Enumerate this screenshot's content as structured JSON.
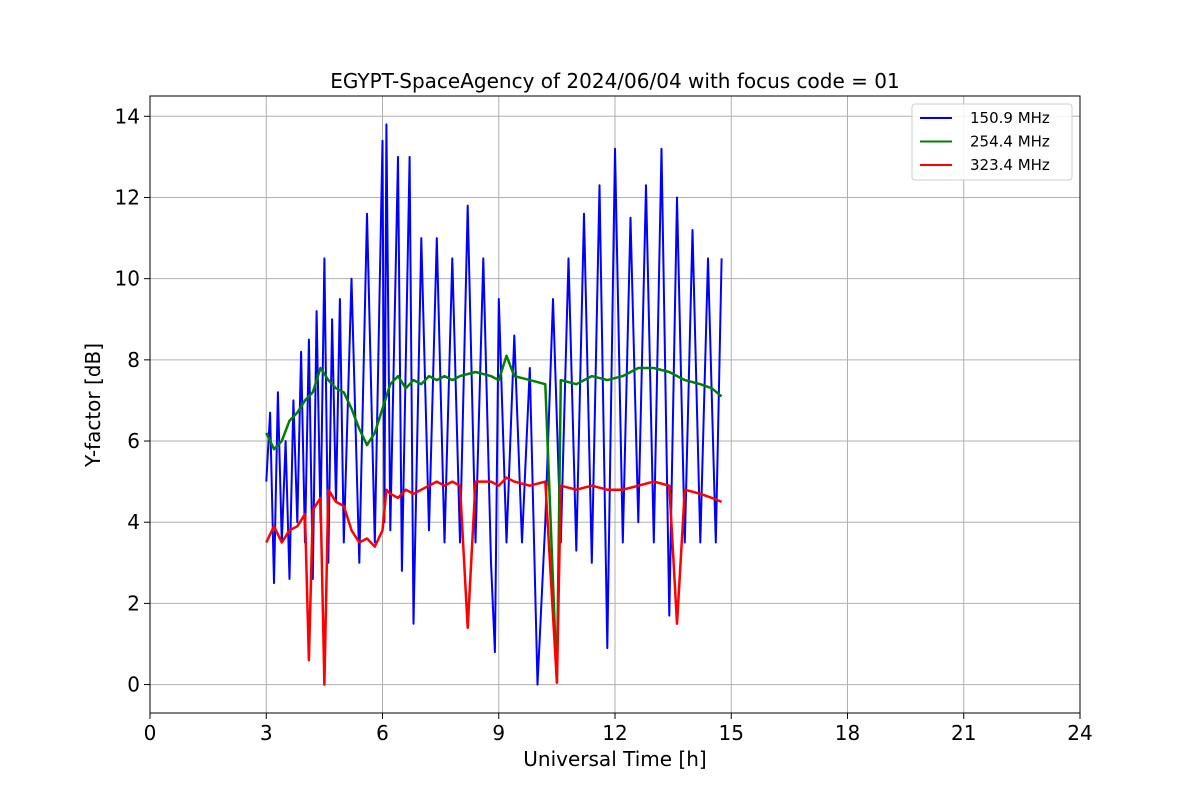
{
  "chart_data": {
    "type": "line",
    "title": "EGYPT-SpaceAgency of 2024/06/04 with focus code = 01",
    "xlabel": "Universal Time [h]",
    "ylabel": "Y-factor [dB]",
    "xlim": [
      0,
      24
    ],
    "ylim": [
      -0.7,
      14.5
    ],
    "x_ticks": [
      "0",
      "3",
      "6",
      "9",
      "12",
      "15",
      "18",
      "21",
      "24"
    ],
    "y_ticks": [
      "0",
      "2",
      "4",
      "6",
      "8",
      "10",
      "12",
      "14"
    ],
    "grid": true,
    "legend_position": "top-right",
    "series": [
      {
        "name": "150.9 MHz",
        "color": "#0000ff",
        "x": [
          3.0,
          3.1,
          3.2,
          3.3,
          3.4,
          3.5,
          3.6,
          3.7,
          3.8,
          3.9,
          4.0,
          4.1,
          4.2,
          4.3,
          4.4,
          4.5,
          4.6,
          4.7,
          4.8,
          4.9,
          5.0,
          5.2,
          5.4,
          5.6,
          5.8,
          6.0,
          6.05,
          6.1,
          6.2,
          6.4,
          6.5,
          6.7,
          6.8,
          7.0,
          7.2,
          7.4,
          7.6,
          7.8,
          8.0,
          8.2,
          8.4,
          8.6,
          8.8,
          8.9,
          9.0,
          9.2,
          9.4,
          9.6,
          9.8,
          10.0,
          10.2,
          10.4,
          10.6,
          10.8,
          11.0,
          11.2,
          11.4,
          11.6,
          11.8,
          12.0,
          12.2,
          12.4,
          12.6,
          12.8,
          13.0,
          13.2,
          13.4,
          13.6,
          13.8,
          14.0,
          14.2,
          14.4,
          14.6,
          14.75
        ],
        "y": [
          5.0,
          6.7,
          2.5,
          7.2,
          3.5,
          6.0,
          2.6,
          7.0,
          4.0,
          8.2,
          3.5,
          8.5,
          2.6,
          9.2,
          4.0,
          10.5,
          3.0,
          9.0,
          4.5,
          9.5,
          3.5,
          10.0,
          3.0,
          11.6,
          3.5,
          13.4,
          4.0,
          13.8,
          3.8,
          13.0,
          2.8,
          13.0,
          1.5,
          11.0,
          3.8,
          11.0,
          3.5,
          10.5,
          3.5,
          11.8,
          3.5,
          10.5,
          3.0,
          0.8,
          9.5,
          3.5,
          8.6,
          3.5,
          7.8,
          0.0,
          4.0,
          9.5,
          3.5,
          10.5,
          3.3,
          11.6,
          3.0,
          12.3,
          0.9,
          13.2,
          3.5,
          11.5,
          4.0,
          12.3,
          3.5,
          13.2,
          1.7,
          12.0,
          3.5,
          11.2,
          3.5,
          10.5,
          3.5,
          10.5
        ]
      },
      {
        "name": "254.4 MHz",
        "color": "#008000",
        "x": [
          3.0,
          3.2,
          3.4,
          3.6,
          3.8,
          4.0,
          4.2,
          4.4,
          4.6,
          4.8,
          5.0,
          5.2,
          5.4,
          5.6,
          5.8,
          6.0,
          6.2,
          6.4,
          6.6,
          6.8,
          7.0,
          7.2,
          7.4,
          7.6,
          7.8,
          8.0,
          8.4,
          8.8,
          9.0,
          9.2,
          9.4,
          9.8,
          10.2,
          10.5,
          10.6,
          11.0,
          11.4,
          11.8,
          12.2,
          12.6,
          13.0,
          13.4,
          13.8,
          14.2,
          14.5,
          14.75
        ],
        "y": [
          6.2,
          5.8,
          6.0,
          6.5,
          6.7,
          7.0,
          7.2,
          7.8,
          7.5,
          7.3,
          7.2,
          6.8,
          6.3,
          5.9,
          6.2,
          6.8,
          7.4,
          7.6,
          7.3,
          7.5,
          7.4,
          7.6,
          7.5,
          7.6,
          7.5,
          7.6,
          7.7,
          7.6,
          7.5,
          8.1,
          7.6,
          7.5,
          7.4,
          0.05,
          7.5,
          7.4,
          7.6,
          7.5,
          7.6,
          7.8,
          7.8,
          7.7,
          7.5,
          7.4,
          7.3,
          7.1
        ]
      },
      {
        "name": "323.4 MHz",
        "color": "#ff0000",
        "x": [
          3.0,
          3.1,
          3.2,
          3.4,
          3.6,
          3.8,
          4.0,
          4.1,
          4.2,
          4.4,
          4.5,
          4.6,
          4.8,
          5.0,
          5.2,
          5.4,
          5.6,
          5.8,
          6.0,
          6.1,
          6.2,
          6.4,
          6.6,
          6.8,
          7.0,
          7.2,
          7.4,
          7.6,
          7.8,
          8.0,
          8.2,
          8.4,
          8.8,
          9.0,
          9.2,
          9.4,
          9.8,
          10.2,
          10.5,
          10.6,
          11.0,
          11.4,
          11.8,
          12.2,
          12.6,
          13.0,
          13.4,
          13.6,
          13.8,
          14.2,
          14.5,
          14.75
        ],
        "y": [
          3.5,
          3.7,
          3.9,
          3.5,
          3.8,
          3.9,
          4.2,
          0.6,
          4.3,
          4.6,
          0.0,
          4.8,
          4.5,
          4.4,
          3.8,
          3.5,
          3.6,
          3.4,
          3.8,
          4.8,
          4.7,
          4.6,
          4.8,
          4.7,
          4.8,
          4.9,
          5.0,
          4.9,
          5.0,
          4.9,
          1.4,
          5.0,
          5.0,
          4.9,
          5.1,
          5.0,
          4.9,
          5.0,
          0.05,
          4.9,
          4.8,
          4.9,
          4.8,
          4.8,
          4.9,
          5.0,
          4.9,
          1.5,
          4.8,
          4.7,
          4.6,
          4.5
        ]
      }
    ]
  }
}
